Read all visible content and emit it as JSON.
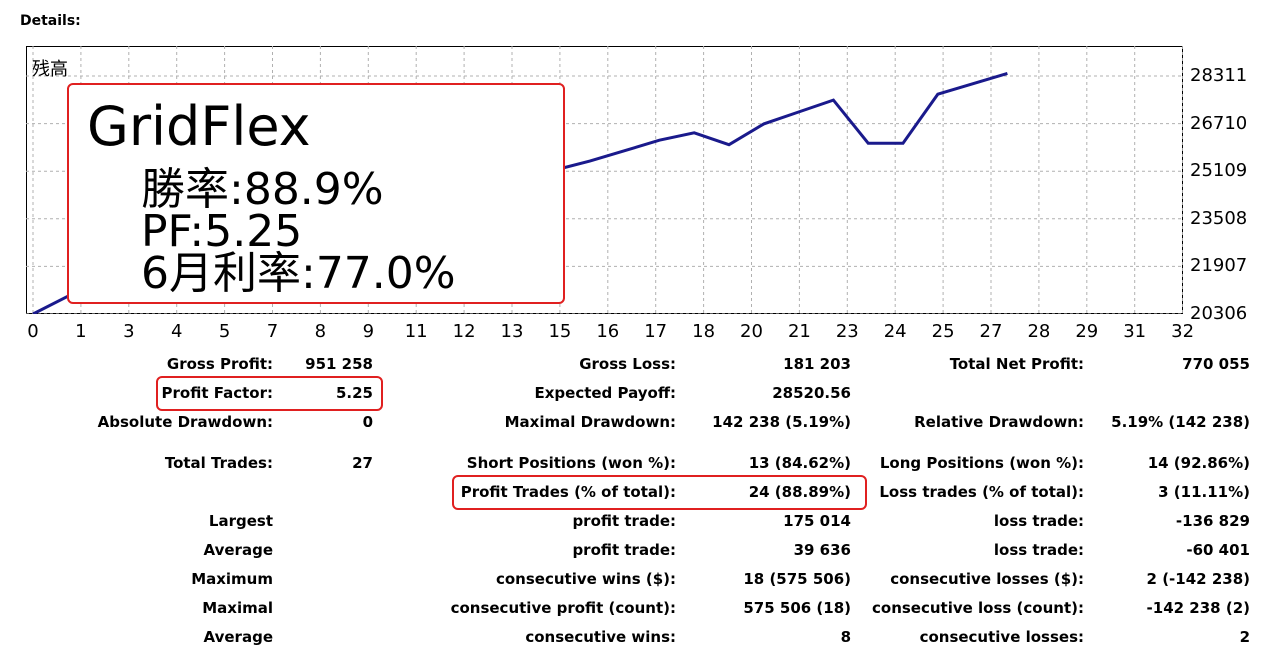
{
  "details_label": "Details:",
  "chart": {
    "series_label": "残高",
    "line_color": "#1a1a8c",
    "grid_color": "#b0b0b0",
    "highlight_color": "#e02020"
  },
  "chart_data": {
    "type": "line",
    "title": "",
    "series": [
      {
        "name": "残高",
        "x": [
          0,
          1,
          15,
          16,
          17,
          18,
          19,
          20,
          21,
          22,
          23,
          24,
          25,
          26,
          27,
          28
        ],
        "y": [
          20306,
          20900,
          25150,
          25450,
          25800,
          26150,
          26400,
          26000,
          26700,
          27100,
          27500,
          26050,
          26050,
          27700,
          28050,
          28400
        ]
      }
    ],
    "x_ticks": [
      "0",
      "1",
      "3",
      "4",
      "5",
      "7",
      "8",
      "9",
      "11",
      "12",
      "13",
      "15",
      "16",
      "17",
      "18",
      "20",
      "21",
      "23",
      "24",
      "25",
      "27",
      "28",
      "29",
      "31",
      "32"
    ],
    "y_ticks": [
      "28311",
      "26710",
      "25109",
      "23508",
      "21907",
      "20306"
    ],
    "ylim": [
      20306,
      28311
    ],
    "grid": true
  },
  "overlay": {
    "title": "GridFlex",
    "win_rate": "勝率:88.9%",
    "pf": "PF:5.25",
    "monthly": "6月利率:77.0%"
  },
  "stats": {
    "gross_profit_label": "Gross Profit:",
    "gross_profit": "951 258",
    "gross_loss_label": "Gross Loss:",
    "gross_loss": "181 203",
    "net_profit_label": "Total Net Profit:",
    "net_profit": "770 055",
    "profit_factor_label": "Profit Factor:",
    "profit_factor": "5.25",
    "expected_payoff_label": "Expected Payoff:",
    "expected_payoff": "28520.56",
    "abs_dd_label": "Absolute Drawdown:",
    "abs_dd": "0",
    "max_dd_label": "Maximal Drawdown:",
    "max_dd": "142 238 (5.19%)",
    "rel_dd_label": "Relative Drawdown:",
    "rel_dd": "5.19% (142 238)",
    "total_trades_label": "Total Trades:",
    "total_trades": "27",
    "short_label": "Short Positions (won %):",
    "short": "13 (84.62%)",
    "long_label": "Long Positions (won %):",
    "long": "14 (92.86%)",
    "profit_trades_label": "Profit Trades (% of total):",
    "profit_trades": "24 (88.89%)",
    "loss_trades_label": "Loss trades (% of total):",
    "loss_trades": "3 (11.11%)",
    "largest_label": "Largest",
    "largest_profit_label": "profit trade:",
    "largest_profit": "175 014",
    "largest_loss_label": "loss trade:",
    "largest_loss": "-136 829",
    "average_label": "Average",
    "average_profit_label": "profit trade:",
    "average_profit": "39 636",
    "average_loss_label": "loss trade:",
    "average_loss": "-60 401",
    "maximum_label": "Maximum",
    "max_cons_wins_label": "consecutive wins ($):",
    "max_cons_wins": "18 (575 506)",
    "max_cons_losses_label": "consecutive losses ($):",
    "max_cons_losses": "2 (-142 238)",
    "maximal_label": "Maximal",
    "maximal_cons_profit_label": "consecutive profit (count):",
    "maximal_cons_profit": "575 506 (18)",
    "maximal_cons_loss_label": "consecutive loss (count):",
    "maximal_cons_loss": "-142 238 (2)",
    "average2_label": "Average",
    "avg_cons_wins_label": "consecutive wins:",
    "avg_cons_wins": "8",
    "avg_cons_losses_label": "consecutive losses:",
    "avg_cons_losses": "2"
  }
}
